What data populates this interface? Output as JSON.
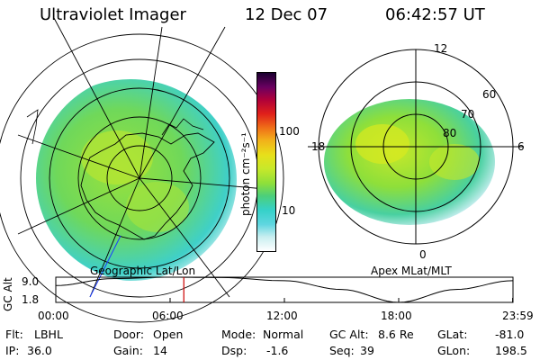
{
  "header": {
    "instrument": "Ultraviolet Imager",
    "date": "12 Dec 07",
    "time": "06:42:57 UT"
  },
  "colorbar": {
    "unit_label": "photon cm⁻²s⁻¹",
    "ticks": [
      "100",
      "10"
    ],
    "colors": [
      "#ffffff",
      "#c8eef0",
      "#5fd6e0",
      "#35d1c8",
      "#4ccf7a",
      "#8edf3a",
      "#c6e82a",
      "#e8e01a",
      "#f2b21a",
      "#f07018",
      "#e0201a",
      "#b0003a",
      "#6a0060",
      "#1a0030"
    ]
  },
  "left_panel": {
    "caption": "Geographic Lat/Lon"
  },
  "right_panel": {
    "caption": "Apex MLat/MLT",
    "mlt_labels": [
      "12",
      "18",
      "6",
      "0"
    ],
    "mlat_labels": [
      "60",
      "70",
      "80"
    ]
  },
  "altitude_plot": {
    "axis_title": "GC Alt",
    "y_ticks": [
      "9.0",
      "1.8"
    ],
    "x_ticks": [
      "00:00",
      "06:00",
      "12:00",
      "18:00",
      "23:59"
    ],
    "marker_color": "#cc0000"
  },
  "chart_data": {
    "type": "line",
    "title": "",
    "xlabel": "",
    "ylabel": "GC Alt",
    "xlim": [
      0,
      24
    ],
    "ylim": [
      1.8,
      9.0
    ],
    "x": [
      0,
      3,
      6,
      8.7,
      12,
      15,
      18,
      21,
      23.98
    ],
    "series": [
      {
        "values": [
          6.6,
          8.6,
          9.0,
          8.9,
          8.0,
          5.5,
          1.8,
          5.5,
          8.0
        ]
      }
    ],
    "marker_x": 6.72
  },
  "status": {
    "flt_label": "Flt:",
    "flt_value": "LBHL",
    "ip_label": "IP:",
    "ip_value": "36.0",
    "door_label": "Door:",
    "door_value": "Open",
    "gain_label": "Gain:",
    "gain_value": "14",
    "mode_label": "Mode:",
    "mode_value": "Normal",
    "dsp_label": "Dsp:",
    "dsp_value": "-1.6",
    "gcalt_label": "GC Alt:",
    "gcalt_value": "8.6 Re",
    "seq_label": "Seq:",
    "seq_value": "39",
    "glat_label": "GLat:",
    "glat_value": "-81.0",
    "glon_label": "GLon:",
    "glon_value": "198.5"
  }
}
